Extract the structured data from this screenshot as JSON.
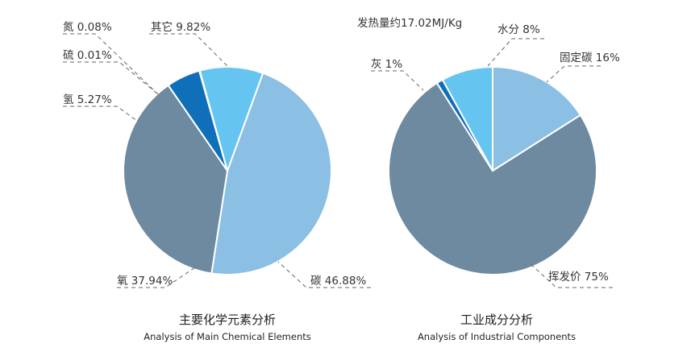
{
  "chart_data": [
    {
      "type": "pie",
      "title": "主要化学元素分析",
      "subtitle": "Analysis of Main Chemical Elements",
      "slices": [
        {
          "label": "碳",
          "value": 46.88,
          "display": "碳 46.88%",
          "color": "#8bbfe4"
        },
        {
          "label": "氧",
          "value": 37.94,
          "display": "氧 37.94%",
          "color": "#6d8aa0"
        },
        {
          "label": "氢",
          "value": 5.27,
          "display": "氢 5.27%",
          "color": "#0f6fb8"
        },
        {
          "label": "硫",
          "value": 0.01,
          "display": "硫 0.01%",
          "color": "#0f6fb8"
        },
        {
          "label": "氮",
          "value": 0.08,
          "display": "氮 0.08%",
          "color": "#0f6fb8"
        },
        {
          "label": "其它",
          "value": 9.82,
          "display": "其它 9.82%",
          "color": "#66c5f0"
        }
      ]
    },
    {
      "type": "pie",
      "title": "工业成分分析",
      "subtitle": "Analysis of Industrial Components",
      "annotation": "发热量约17.02MJ/Kg",
      "slices": [
        {
          "label": "固定碳",
          "value": 16,
          "display": "固定碳 16%",
          "color": "#8bbfe4"
        },
        {
          "label": "挥发价",
          "value": 75,
          "display": "挥发价 75%",
          "color": "#6d8aa0"
        },
        {
          "label": "灰",
          "value": 1,
          "display": "灰 1%",
          "color": "#0f6fb8"
        },
        {
          "label": "水分",
          "value": 8,
          "display": "水分 8%",
          "color": "#66c5f0"
        }
      ]
    }
  ]
}
